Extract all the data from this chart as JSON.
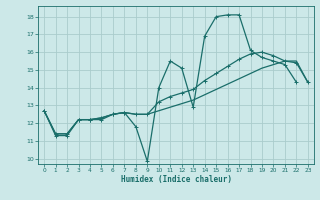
{
  "xlabel": "Humidex (Indice chaleur)",
  "bg_color": "#cce8e8",
  "grid_color": "#aacccc",
  "line_color": "#1a6e6a",
  "xlim": [
    -0.5,
    23.5
  ],
  "ylim": [
    9.7,
    18.6
  ],
  "xticks": [
    0,
    1,
    2,
    3,
    4,
    5,
    6,
    7,
    8,
    9,
    10,
    11,
    12,
    13,
    14,
    15,
    16,
    17,
    18,
    19,
    20,
    21,
    22,
    23
  ],
  "yticks": [
    10,
    11,
    12,
    13,
    14,
    15,
    16,
    17,
    18
  ],
  "line1_x": [
    0,
    1,
    2,
    3,
    4,
    5,
    6,
    7,
    8,
    9,
    10,
    11,
    12,
    13,
    14,
    15,
    16,
    17,
    18,
    19,
    20,
    21,
    22
  ],
  "line1_y": [
    12.7,
    11.3,
    11.3,
    12.2,
    12.2,
    12.2,
    12.5,
    12.6,
    11.8,
    9.85,
    14.0,
    15.5,
    15.1,
    12.9,
    16.9,
    18.0,
    18.1,
    18.1,
    16.1,
    15.7,
    15.5,
    15.3,
    14.3
  ],
  "line2_x": [
    0,
    1,
    2,
    3,
    4,
    5,
    6,
    7,
    8,
    9,
    10,
    11,
    12,
    13,
    14,
    15,
    16,
    17,
    18,
    19,
    20,
    21,
    22,
    23
  ],
  "line2_y": [
    12.7,
    11.4,
    11.4,
    12.2,
    12.2,
    12.3,
    12.5,
    12.6,
    12.5,
    12.5,
    13.2,
    13.5,
    13.7,
    13.9,
    14.4,
    14.8,
    15.2,
    15.6,
    15.9,
    16.0,
    15.8,
    15.5,
    15.4,
    14.3
  ],
  "line3_x": [
    0,
    1,
    2,
    3,
    4,
    5,
    6,
    7,
    8,
    9,
    10,
    11,
    12,
    13,
    14,
    15,
    16,
    17,
    18,
    19,
    20,
    21,
    22,
    23
  ],
  "line3_y": [
    12.7,
    11.4,
    11.4,
    12.2,
    12.2,
    12.3,
    12.5,
    12.6,
    12.5,
    12.5,
    12.7,
    12.9,
    13.1,
    13.3,
    13.6,
    13.9,
    14.2,
    14.5,
    14.8,
    15.1,
    15.3,
    15.5,
    15.5,
    14.3
  ]
}
